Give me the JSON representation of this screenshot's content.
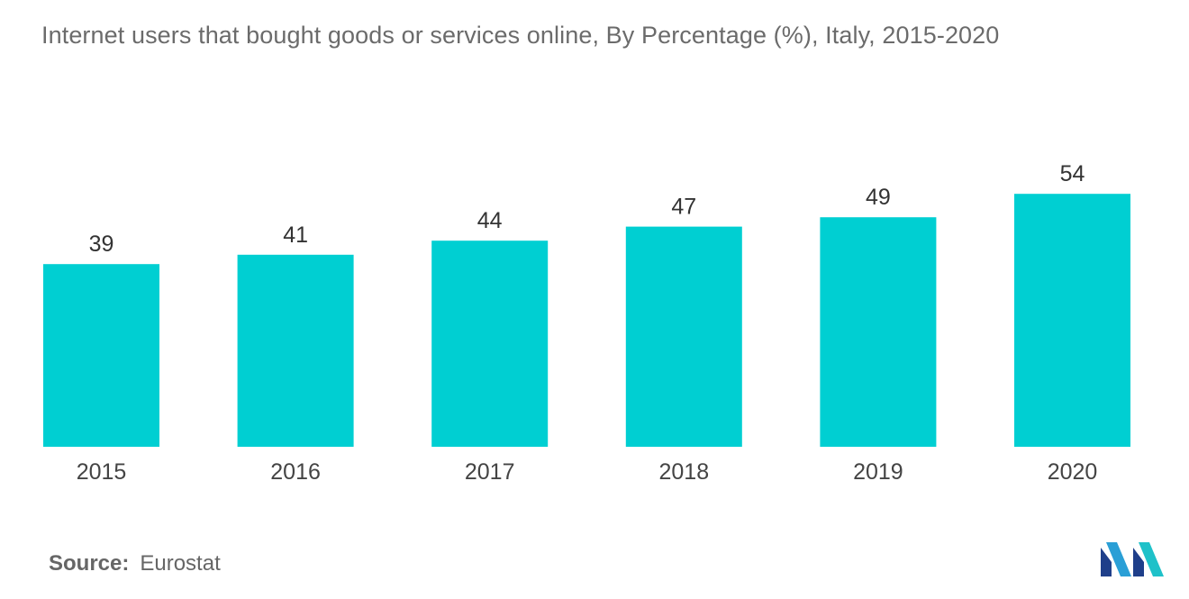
{
  "title": "Internet users that bought goods or services online, By Percentage (%), Italy, 2015-2020",
  "source": {
    "label": "Source:",
    "value": "Eurostat"
  },
  "logo": {
    "icon": "mordor-intelligence-logo-icon",
    "colors": [
      "#1f3f8a",
      "#2a9fd6",
      "#1fc1c9"
    ]
  },
  "colors": {
    "bar": "#00cfd2",
    "title_text": "#6b6b6b",
    "label_text": "#333333",
    "axis_text": "#444444"
  },
  "chart_data": {
    "type": "bar",
    "categories": [
      "2015",
      "2016",
      "2017",
      "2018",
      "2019",
      "2020"
    ],
    "values": [
      39,
      41,
      44,
      47,
      49,
      54
    ],
    "data_labels": [
      "39",
      "41",
      "44",
      "47",
      "49",
      "54"
    ],
    "title": "Internet users that bought goods or services online, By Percentage (%), Italy, 2015-2020",
    "xlabel": "",
    "ylabel": "",
    "ylim": [
      0,
      70
    ],
    "grid": false,
    "legend": "none"
  }
}
